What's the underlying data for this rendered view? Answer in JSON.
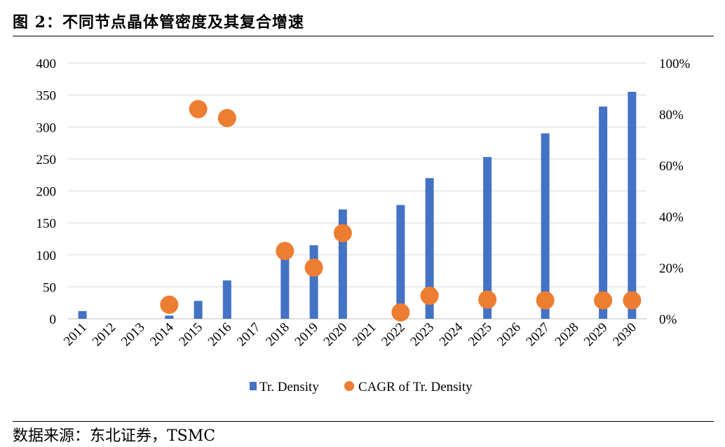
{
  "figure": {
    "title": "图 2：不同节点晶体管密度及其复合增速",
    "source": "数据来源：东北证券，TSMC"
  },
  "colors": {
    "bar": "#4472C4",
    "dot": "#ED7D31",
    "grid": "#D9D9D9"
  },
  "chart_data": {
    "type": "bar",
    "categories": [
      "2011",
      "2012",
      "2013",
      "2014",
      "2015",
      "2016",
      "2017",
      "2018",
      "2019",
      "2020",
      "2021",
      "2022",
      "2023",
      "2024",
      "2025",
      "2026",
      "2027",
      "2028",
      "2029",
      "2030"
    ],
    "series": [
      {
        "name": "Tr. Density",
        "type": "bar",
        "axis": "left",
        "values": [
          12,
          0,
          0,
          5,
          28,
          60,
          0,
          100,
          115,
          171,
          0,
          178,
          220,
          0,
          253,
          0,
          290,
          0,
          332,
          355
        ]
      },
      {
        "name": "CAGR of Tr. Density",
        "type": "scatter",
        "axis": "right",
        "values": [
          null,
          null,
          null,
          0.055,
          0.82,
          0.785,
          null,
          0.265,
          0.2,
          0.335,
          null,
          0.025,
          0.09,
          null,
          0.075,
          null,
          0.072,
          null,
          0.072,
          0.072
        ]
      }
    ],
    "y_left": {
      "ylim": [
        0,
        400
      ],
      "ticks": [
        "0",
        "50",
        "100",
        "150",
        "200",
        "250",
        "300",
        "350",
        "400"
      ]
    },
    "y_right": {
      "ylim": [
        0,
        1
      ],
      "ticks": [
        "0%",
        "20%",
        "40%",
        "60%",
        "80%",
        "100%"
      ]
    },
    "grid": true,
    "legend_position": "bottom"
  }
}
